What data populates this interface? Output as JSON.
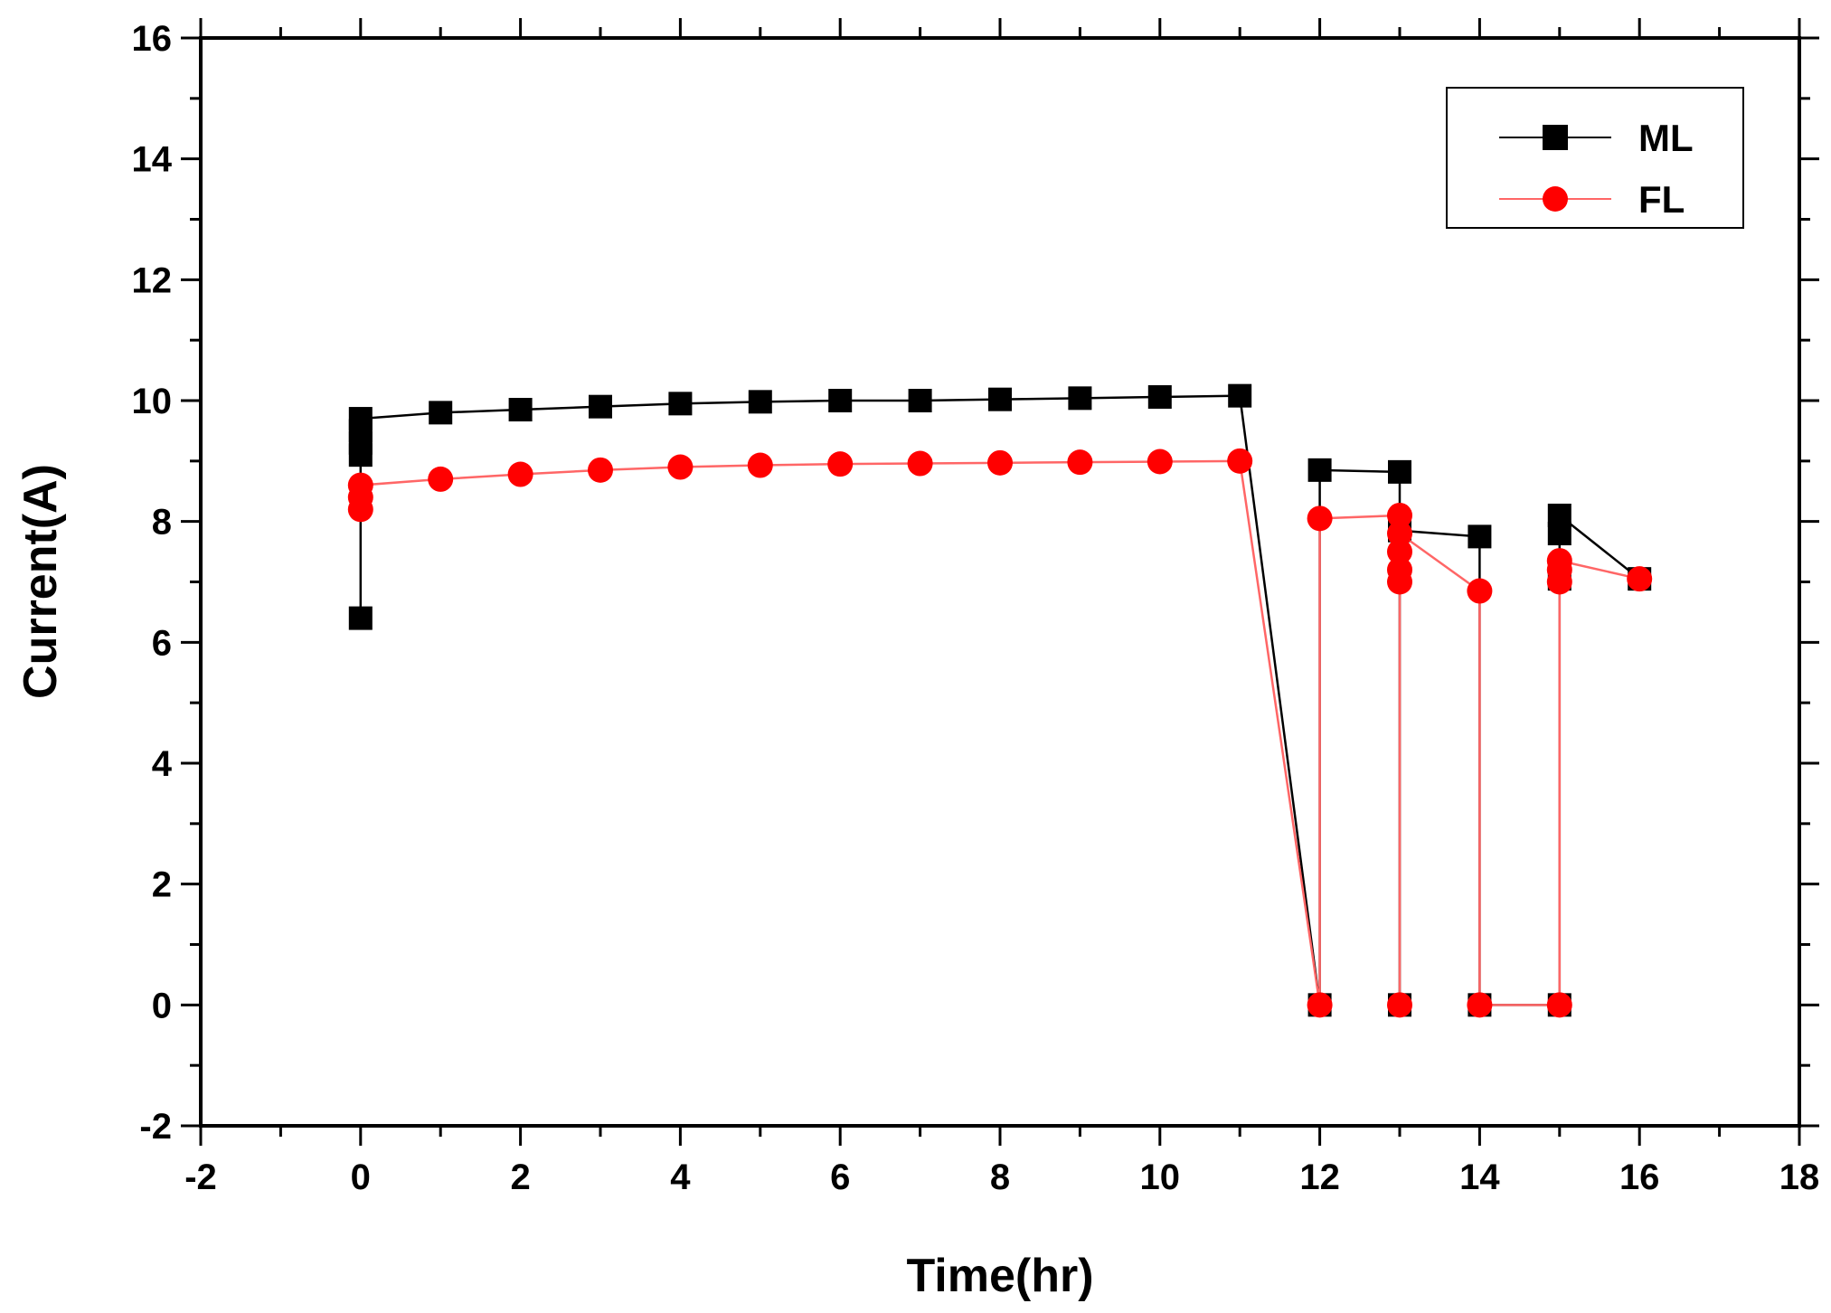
{
  "chart_data": {
    "type": "line",
    "title": "",
    "xlabel": "Time(hr)",
    "ylabel": "Current(A)",
    "xlim": [
      -2,
      18
    ],
    "ylim": [
      -2,
      16
    ],
    "x_ticks": [
      -2,
      0,
      2,
      4,
      6,
      8,
      10,
      12,
      14,
      16,
      18
    ],
    "y_ticks": [
      -2,
      0,
      2,
      4,
      6,
      8,
      10,
      12,
      14,
      16
    ],
    "grid": false,
    "legend_position": "top-right",
    "series": [
      {
        "name": "ML",
        "color": "#000000",
        "line_color": "#000000",
        "marker": "square",
        "points": [
          [
            0,
            6.4
          ],
          [
            0,
            9.1
          ],
          [
            0,
            9.3
          ],
          [
            0,
            9.5
          ],
          [
            0,
            9.7
          ],
          [
            1,
            9.8
          ],
          [
            2,
            9.85
          ],
          [
            3,
            9.9
          ],
          [
            4,
            9.95
          ],
          [
            5,
            9.98
          ],
          [
            6,
            10.0
          ],
          [
            7,
            10.0
          ],
          [
            8,
            10.02
          ],
          [
            9,
            10.04
          ],
          [
            10,
            10.06
          ],
          [
            11,
            10.08
          ],
          [
            12,
            0
          ],
          [
            12,
            8.85
          ],
          [
            13,
            8.82
          ],
          [
            13,
            0
          ],
          [
            13,
            7.85
          ],
          [
            14,
            7.75
          ],
          [
            14,
            0
          ],
          [
            15,
            0
          ],
          [
            15,
            7.05
          ],
          [
            15,
            7.8
          ],
          [
            15,
            8.1
          ],
          [
            16,
            7.05
          ]
        ]
      },
      {
        "name": "FL",
        "color": "#ff0000",
        "line_color": "#ff6666",
        "marker": "circle",
        "points": [
          [
            0,
            8.2
          ],
          [
            0,
            8.4
          ],
          [
            0,
            8.6
          ],
          [
            1,
            8.7
          ],
          [
            2,
            8.78
          ],
          [
            3,
            8.85
          ],
          [
            4,
            8.9
          ],
          [
            5,
            8.93
          ],
          [
            6,
            8.95
          ],
          [
            7,
            8.96
          ],
          [
            8,
            8.97
          ],
          [
            9,
            8.98
          ],
          [
            10,
            8.99
          ],
          [
            11,
            9.0
          ],
          [
            12,
            0
          ],
          [
            12,
            8.05
          ],
          [
            13,
            8.1
          ],
          [
            13,
            0
          ],
          [
            13,
            7.0
          ],
          [
            13,
            7.2
          ],
          [
            13,
            7.5
          ],
          [
            13,
            7.8
          ],
          [
            14,
            6.85
          ],
          [
            14,
            0
          ],
          [
            15,
            0
          ],
          [
            15,
            7.0
          ],
          [
            15,
            7.2
          ],
          [
            15,
            7.35
          ],
          [
            16,
            7.05
          ]
        ]
      }
    ]
  }
}
